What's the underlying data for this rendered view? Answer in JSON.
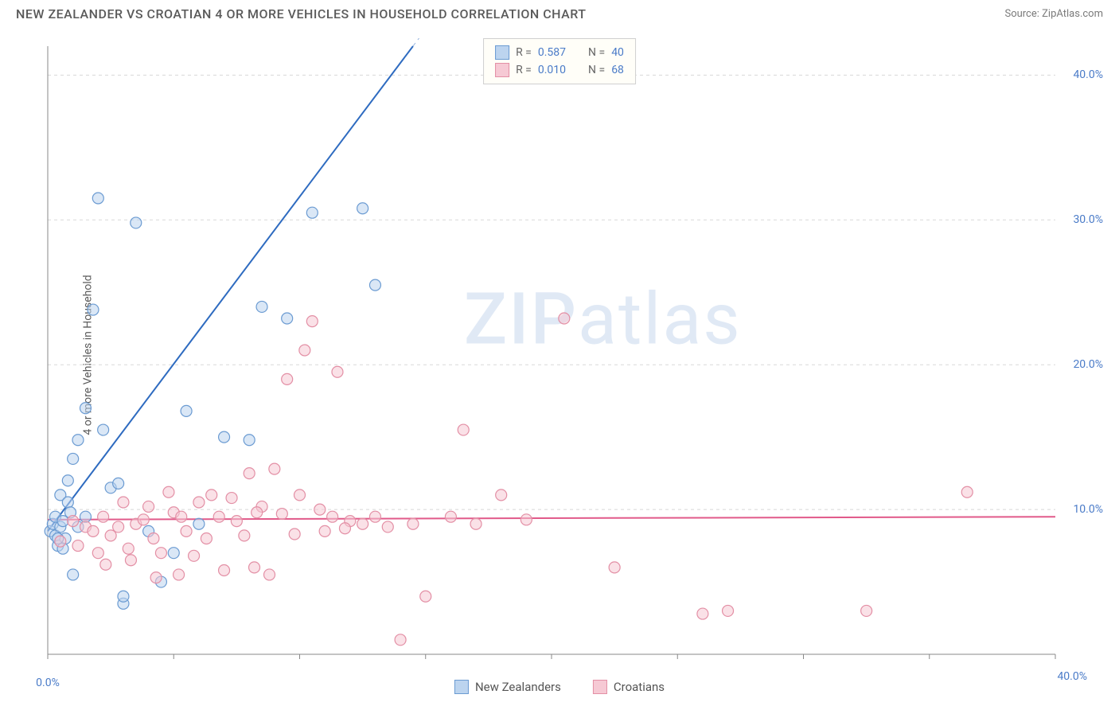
{
  "header": {
    "title": "NEW ZEALANDER VS CROATIAN 4 OR MORE VEHICLES IN HOUSEHOLD CORRELATION CHART",
    "source": "Source: ZipAtlas.com"
  },
  "watermark": {
    "zip": "ZIP",
    "atlas": "atlas"
  },
  "ylabel": "4 or more Vehicles in Household",
  "chart": {
    "type": "scatter",
    "xlim": [
      0,
      40
    ],
    "ylim": [
      0,
      42
    ],
    "x_ticks": [
      0,
      5,
      10,
      15,
      20,
      25,
      30,
      35,
      40
    ],
    "x_tick_labels_shown": {
      "0": "0.0%",
      "40": "40.0%"
    },
    "y_ticks": [
      10,
      20,
      30,
      40
    ],
    "y_tick_labels": {
      "10": "10.0%",
      "20": "20.0%",
      "30": "30.0%",
      "40": "40.0%"
    },
    "grid_color": "#d8d8d8",
    "axis_color": "#888888",
    "marker_radius": 7,
    "marker_stroke_width": 1.2,
    "series": [
      {
        "name": "New Zealanders",
        "fill": "#bcd4ef",
        "stroke": "#6b9bd2",
        "fill_opacity": 0.55,
        "R": "0.587",
        "N": "40",
        "trend": {
          "x1": 0,
          "y1": 8.5,
          "x2": 14.5,
          "y2": 42,
          "color": "#2e6bc0",
          "width": 2,
          "dash_extend": true
        },
        "points": [
          [
            0.1,
            8.5
          ],
          [
            0.2,
            9.0
          ],
          [
            0.3,
            8.2
          ],
          [
            0.3,
            9.5
          ],
          [
            0.4,
            7.5
          ],
          [
            0.5,
            8.8
          ],
          [
            0.5,
            11.0
          ],
          [
            0.6,
            9.2
          ],
          [
            0.7,
            8.0
          ],
          [
            0.8,
            10.5
          ],
          [
            0.8,
            12.0
          ],
          [
            1.0,
            13.5
          ],
          [
            1.2,
            14.8
          ],
          [
            1.5,
            17.0
          ],
          [
            1.8,
            23.8
          ],
          [
            2.0,
            31.5
          ],
          [
            2.5,
            11.5
          ],
          [
            3.0,
            3.5
          ],
          [
            3.5,
            29.8
          ],
          [
            3.0,
            4.0
          ],
          [
            4.0,
            8.5
          ],
          [
            4.5,
            5.0
          ],
          [
            5.0,
            7.0
          ],
          [
            5.5,
            16.8
          ],
          [
            6.0,
            9.0
          ],
          [
            7.0,
            15.0
          ],
          [
            8.0,
            14.8
          ],
          [
            8.5,
            24.0
          ],
          [
            10.5,
            30.5
          ],
          [
            13.0,
            25.5
          ],
          [
            12.5,
            30.8
          ],
          [
            1.0,
            5.5
          ],
          [
            1.2,
            8.8
          ],
          [
            1.5,
            9.5
          ],
          [
            2.2,
            15.5
          ],
          [
            0.4,
            8.0
          ],
          [
            0.6,
            7.3
          ],
          [
            2.8,
            11.8
          ],
          [
            9.5,
            23.2
          ],
          [
            0.9,
            9.8
          ]
        ]
      },
      {
        "name": "Croatians",
        "fill": "#f6c9d4",
        "stroke": "#e38fa5",
        "fill_opacity": 0.55,
        "R": "0.010",
        "N": "68",
        "trend": {
          "x1": 0,
          "y1": 9.3,
          "x2": 40,
          "y2": 9.5,
          "color": "#e15a8a",
          "width": 2,
          "dash_extend": false
        },
        "points": [
          [
            0.5,
            7.8
          ],
          [
            1.0,
            9.2
          ],
          [
            1.2,
            7.5
          ],
          [
            1.5,
            8.8
          ],
          [
            2.0,
            7.0
          ],
          [
            2.2,
            9.5
          ],
          [
            2.5,
            8.2
          ],
          [
            3.0,
            10.5
          ],
          [
            3.2,
            7.3
          ],
          [
            3.5,
            9.0
          ],
          [
            4.0,
            10.2
          ],
          [
            4.2,
            8.0
          ],
          [
            4.5,
            7.0
          ],
          [
            5.0,
            9.8
          ],
          [
            5.2,
            5.5
          ],
          [
            5.5,
            8.5
          ],
          [
            6.0,
            10.5
          ],
          [
            6.5,
            11.0
          ],
          [
            7.0,
            5.8
          ],
          [
            7.5,
            9.2
          ],
          [
            8.0,
            12.5
          ],
          [
            8.2,
            6.0
          ],
          [
            8.5,
            10.2
          ],
          [
            9.0,
            12.8
          ],
          [
            9.5,
            19.0
          ],
          [
            10.0,
            11.0
          ],
          [
            10.2,
            21.0
          ],
          [
            10.5,
            23.0
          ],
          [
            11.0,
            8.5
          ],
          [
            11.5,
            19.5
          ],
          [
            12.0,
            9.2
          ],
          [
            12.5,
            9.0
          ],
          [
            13.5,
            8.8
          ],
          [
            14.0,
            1.0
          ],
          [
            15.0,
            4.0
          ],
          [
            16.0,
            9.5
          ],
          [
            16.5,
            15.5
          ],
          [
            17.0,
            9.0
          ],
          [
            18.0,
            11.0
          ],
          [
            20.5,
            23.2
          ],
          [
            22.5,
            6.0
          ],
          [
            26.0,
            2.8
          ],
          [
            27.0,
            3.0
          ],
          [
            32.5,
            3.0
          ],
          [
            36.5,
            11.2
          ],
          [
            1.8,
            8.5
          ],
          [
            2.3,
            6.2
          ],
          [
            2.8,
            8.8
          ],
          [
            3.3,
            6.5
          ],
          [
            3.8,
            9.3
          ],
          [
            4.3,
            5.3
          ],
          [
            4.8,
            11.2
          ],
          [
            5.3,
            9.5
          ],
          [
            5.8,
            6.8
          ],
          [
            6.3,
            8.0
          ],
          [
            6.8,
            9.5
          ],
          [
            7.3,
            10.8
          ],
          [
            7.8,
            8.2
          ],
          [
            8.3,
            9.8
          ],
          [
            8.8,
            5.5
          ],
          [
            9.3,
            9.7
          ],
          [
            9.8,
            8.3
          ],
          [
            10.8,
            10.0
          ],
          [
            11.3,
            9.5
          ],
          [
            11.8,
            8.7
          ],
          [
            13.0,
            9.5
          ],
          [
            14.5,
            9.0
          ],
          [
            19.0,
            9.3
          ]
        ]
      }
    ]
  },
  "legend_top": {
    "rows": [
      {
        "swatch_fill": "#bcd4ef",
        "swatch_stroke": "#6b9bd2",
        "r_label": "R =",
        "r_val": "0.587",
        "n_label": "N =",
        "n_val": "40"
      },
      {
        "swatch_fill": "#f6c9d4",
        "swatch_stroke": "#e38fa5",
        "r_label": "R =",
        "r_val": "0.010",
        "n_label": "N =",
        "n_val": "68"
      }
    ]
  },
  "legend_bottom": {
    "items": [
      {
        "swatch_fill": "#bcd4ef",
        "swatch_stroke": "#6b9bd2",
        "label": "New Zealanders"
      },
      {
        "swatch_fill": "#f6c9d4",
        "swatch_stroke": "#e38fa5",
        "label": "Croatians"
      }
    ]
  }
}
